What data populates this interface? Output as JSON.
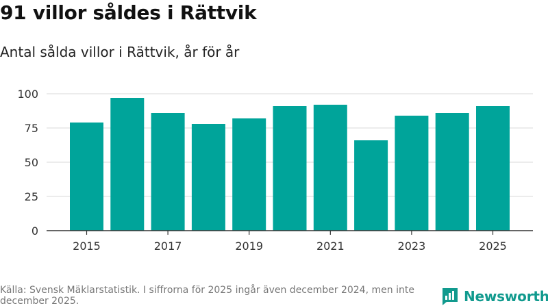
{
  "title": "91 villor såldes i Rättvik",
  "subtitle": "Antal sålda villor i Rättvik, år för år",
  "footer": {
    "note": "Källa: Svensk Mäklarstatistik. I siffrorna för 2025 ingår även december 2024, men inte december 2025.",
    "brand": "Newsworthy"
  },
  "colors": {
    "bar": "#00a49a",
    "grid": "#d9d9d9",
    "axis": "#333333",
    "brand": "#119a8e"
  },
  "chart_data": {
    "type": "bar",
    "title": "91 villor såldes i Rättvik",
    "subtitle": "Antal sålda villor i Rättvik, år för år",
    "xlabel": "",
    "ylabel": "",
    "categories": [
      "2015",
      "2016",
      "2017",
      "2018",
      "2019",
      "2020",
      "2021",
      "2022",
      "2023",
      "2024",
      "2025"
    ],
    "values": [
      79,
      97,
      86,
      78,
      82,
      91,
      92,
      66,
      84,
      86,
      91
    ],
    "ylim": [
      0,
      100
    ],
    "yticks": [
      0,
      25,
      50,
      75,
      100
    ],
    "xtick_labels": [
      "2015",
      "2017",
      "2019",
      "2021",
      "2023",
      "2025"
    ],
    "grid": true
  }
}
